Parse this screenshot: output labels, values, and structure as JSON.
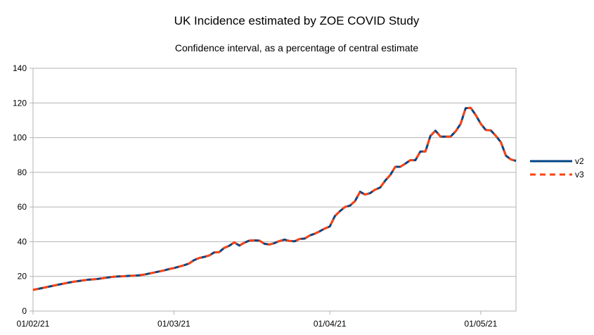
{
  "chart_data": {
    "type": "line",
    "title": "UK Incidence estimated by ZOE COVID Study",
    "subtitle": "Confidence interval, as a percentage of central estimate",
    "xlabel": "",
    "ylabel": "",
    "x_ticks": [
      "01/02/21",
      "01/03/21",
      "01/04/21",
      "01/05/21"
    ],
    "x_tick_days": [
      0,
      28,
      59,
      89
    ],
    "xlim": [
      0,
      96
    ],
    "ylim": [
      0,
      140
    ],
    "y_ticks": [
      0,
      20,
      40,
      60,
      80,
      100,
      120,
      140
    ],
    "grid": true,
    "legend_position": "right",
    "x": [
      0,
      1,
      2,
      3,
      4,
      5,
      6,
      7,
      8,
      9,
      10,
      11,
      12,
      13,
      14,
      15,
      16,
      17,
      18,
      19,
      20,
      21,
      22,
      23,
      24,
      25,
      26,
      27,
      28,
      29,
      30,
      31,
      32,
      33,
      34,
      35,
      36,
      37,
      38,
      39,
      40,
      41,
      42,
      43,
      44,
      45,
      46,
      47,
      48,
      49,
      50,
      51,
      52,
      53,
      54,
      55,
      56,
      57,
      58,
      59,
      60,
      61,
      62,
      63,
      64,
      65,
      66,
      67,
      68,
      69,
      70,
      71,
      72,
      73,
      74,
      75,
      76,
      77,
      78,
      79,
      80,
      81,
      82,
      83,
      84,
      85,
      86,
      87,
      88,
      89,
      90,
      91,
      92,
      93,
      94,
      95,
      96
    ],
    "series": [
      {
        "name": "v2",
        "color": "#004586",
        "style": "solid",
        "values": [
          12.2,
          12.8,
          13.4,
          14.0,
          14.6,
          15.2,
          15.8,
          16.4,
          16.9,
          17.3,
          17.7,
          18.1,
          18.3,
          18.6,
          19.0,
          19.4,
          19.8,
          20.0,
          20.1,
          20.3,
          20.4,
          20.6,
          21.0,
          21.6,
          22.2,
          22.8,
          23.4,
          24.2,
          24.8,
          25.6,
          26.4,
          27.4,
          29.4,
          30.6,
          31.2,
          32.0,
          33.8,
          34.0,
          36.4,
          37.6,
          39.6,
          37.8,
          39.4,
          40.6,
          40.8,
          40.6,
          38.8,
          38.4,
          39.2,
          40.4,
          41.2,
          40.4,
          40.2,
          41.6,
          41.8,
          43.6,
          44.6,
          46.0,
          47.6,
          48.8,
          54.8,
          57.6,
          60.0,
          60.8,
          63.4,
          68.8,
          67.2,
          68.0,
          70.0,
          71.2,
          75.2,
          78.4,
          83.2,
          83.2,
          85.0,
          87.0,
          87.0,
          92.0,
          92.0,
          101.0,
          104.0,
          100.6,
          100.6,
          100.6,
          103.6,
          108.0,
          117.0,
          117.2,
          113.0,
          108.0,
          104.4,
          104.2,
          101.0,
          97.4,
          89.6,
          87.4,
          86.6
        ]
      },
      {
        "name": "v3",
        "color": "#ff420e",
        "style": "dashed",
        "values": [
          12.2,
          12.8,
          13.4,
          14.0,
          14.6,
          15.2,
          15.8,
          16.4,
          16.9,
          17.3,
          17.7,
          18.1,
          18.3,
          18.6,
          19.0,
          19.4,
          19.8,
          20.0,
          20.1,
          20.3,
          20.4,
          20.6,
          21.0,
          21.6,
          22.2,
          22.8,
          23.4,
          24.2,
          24.8,
          25.6,
          26.4,
          27.4,
          29.4,
          30.6,
          31.2,
          32.0,
          33.8,
          34.0,
          36.4,
          37.6,
          39.6,
          37.8,
          39.4,
          40.6,
          40.8,
          40.6,
          38.8,
          38.4,
          39.2,
          40.4,
          41.2,
          40.4,
          40.2,
          41.6,
          41.8,
          43.6,
          44.6,
          46.0,
          47.6,
          48.8,
          54.8,
          57.6,
          60.0,
          60.8,
          63.4,
          68.8,
          67.2,
          68.0,
          70.0,
          71.2,
          75.2,
          78.4,
          83.2,
          83.2,
          85.0,
          87.0,
          87.0,
          92.0,
          92.0,
          101.0,
          104.0,
          100.6,
          100.6,
          100.6,
          103.6,
          108.0,
          117.0,
          117.2,
          113.0,
          108.0,
          104.4,
          104.2,
          101.0,
          97.4,
          89.6,
          87.4,
          86.6
        ]
      }
    ]
  }
}
